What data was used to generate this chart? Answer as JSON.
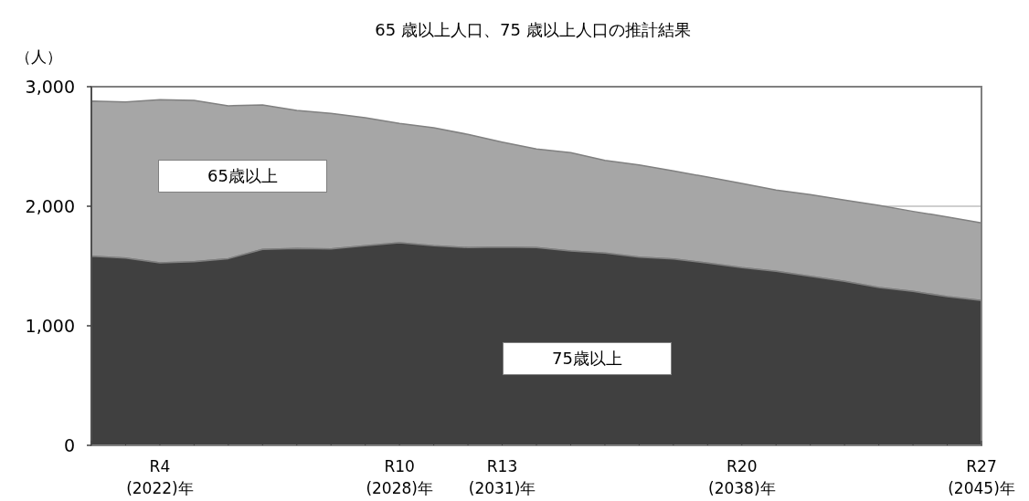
{
  "chart_data": {
    "type": "area",
    "title": "65 歳以上人口、75 歳以上人口の推計結果",
    "ylabel": "（人）",
    "categories": [
      null,
      null,
      "R4 (2022)年",
      null,
      null,
      null,
      null,
      null,
      null,
      "R10 (2028)年",
      null,
      null,
      "R13 (2031)年",
      null,
      null,
      null,
      null,
      null,
      null,
      "R20 (2038)年",
      null,
      null,
      null,
      null,
      null,
      null,
      "R27 (2045)年"
    ],
    "series": [
      {
        "name": "75歳以上",
        "color": "#404040",
        "values": [
          1582,
          1567,
          1527,
          1537,
          1562,
          1639,
          1646,
          1644,
          1669,
          1695,
          1669,
          1654,
          1659,
          1654,
          1626,
          1608,
          1575,
          1560,
          1524,
          1486,
          1456,
          1415,
          1372,
          1321,
          1288,
          1244,
          1211
        ]
      },
      {
        "name": "65歳以上",
        "color": "#a6a6a6",
        "values": [
          2880,
          2872,
          2891,
          2885,
          2840,
          2847,
          2802,
          2777,
          2740,
          2692,
          2656,
          2601,
          2537,
          2479,
          2448,
          2384,
          2346,
          2296,
          2244,
          2191,
          2135,
          2097,
          2051,
          2008,
          1957,
          1911,
          1860
        ]
      }
    ],
    "ylim": [
      0,
      3000
    ],
    "yticks": [
      0,
      {
        "value": 1000,
        "label": "1,000"
      },
      {
        "value": 2000,
        "label": "2,000"
      },
      {
        "value": 3000,
        "label": "3,000"
      }
    ],
    "grid": "y",
    "legend": false
  }
}
